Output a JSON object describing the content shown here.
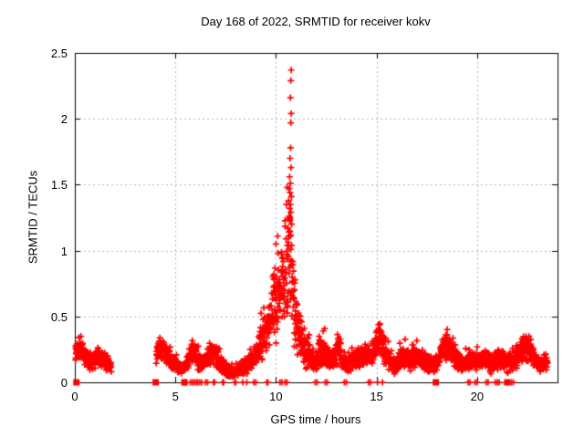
{
  "chart_data": {
    "type": "scatter",
    "title": "Day 168 of 2022, SRMTID for receiver kokv",
    "xlabel": "GPS time / hours",
    "ylabel": "SRMTID / TECUs",
    "xlim": [
      0,
      24
    ],
    "ylim": [
      0,
      2.5
    ],
    "xticks": [
      0,
      5,
      10,
      15,
      20
    ],
    "yticks": [
      0,
      0.5,
      1,
      1.5,
      2,
      2.5
    ],
    "grid": {
      "show": true,
      "style": "dashed",
      "at_xticks": [
        5,
        10,
        15,
        20
      ],
      "at_yticks": [
        0.5,
        1,
        1.5,
        2
      ]
    },
    "legend_position": "none",
    "colors": {
      "background": "#ffffff",
      "border": "#000000",
      "grid": "#b4b4b4",
      "text": "#000000",
      "marker": "#ff0000"
    },
    "series": [
      {
        "name": "srmtid-epochs",
        "marker": "plus",
        "color": "#ff0000",
        "points_per_hour": 120,
        "band_anchors_x_ylow_yhigh": [
          [
            [
              0.03,
              0.14,
              0.3
            ],
            [
              0.15,
              0.18,
              0.37
            ],
            [
              0.3,
              0.17,
              0.34
            ],
            [
              0.5,
              0.12,
              0.28
            ],
            [
              0.7,
              0.09,
              0.24
            ],
            [
              0.9,
              0.09,
              0.24
            ],
            [
              1.1,
              0.12,
              0.3
            ],
            [
              1.3,
              0.11,
              0.27
            ],
            [
              1.5,
              0.08,
              0.23
            ],
            [
              1.7,
              0.07,
              0.21
            ],
            [
              1.82,
              0.06,
              0.18
            ]
          ],
          [
            [
              4.05,
              0.12,
              0.3
            ],
            [
              4.2,
              0.16,
              0.36
            ],
            [
              4.4,
              0.14,
              0.33
            ],
            [
              4.6,
              0.12,
              0.29
            ],
            [
              4.8,
              0.09,
              0.24
            ],
            [
              5.0,
              0.06,
              0.19
            ],
            [
              5.2,
              0.04,
              0.15
            ],
            [
              5.4,
              0.05,
              0.17
            ],
            [
              5.6,
              0.09,
              0.24
            ],
            [
              5.8,
              0.13,
              0.32
            ],
            [
              5.95,
              0.14,
              0.37
            ],
            [
              6.1,
              0.09,
              0.25
            ],
            [
              6.3,
              0.07,
              0.2
            ],
            [
              6.5,
              0.09,
              0.24
            ],
            [
              6.7,
              0.12,
              0.28
            ],
            [
              6.9,
              0.13,
              0.34
            ],
            [
              7.1,
              0.09,
              0.25
            ],
            [
              7.3,
              0.06,
              0.2
            ],
            [
              7.5,
              0.04,
              0.16
            ],
            [
              7.7,
              0.03,
              0.13
            ],
            [
              7.9,
              0.03,
              0.13
            ],
            [
              8.1,
              0.03,
              0.15
            ],
            [
              8.3,
              0.05,
              0.18
            ],
            [
              8.5,
              0.05,
              0.2
            ],
            [
              8.7,
              0.08,
              0.23
            ],
            [
              8.9,
              0.12,
              0.28
            ],
            [
              9.1,
              0.12,
              0.35
            ],
            [
              9.3,
              0.15,
              0.5
            ],
            [
              9.5,
              0.18,
              0.6
            ],
            [
              9.7,
              0.22,
              0.72
            ],
            [
              9.9,
              0.25,
              0.92
            ],
            [
              10.05,
              0.3,
              1.0
            ],
            [
              10.2,
              0.35,
              1.1
            ],
            [
              10.4,
              0.4,
              1.25
            ],
            [
              10.6,
              0.45,
              1.45
            ],
            [
              10.75,
              0.4,
              1.4
            ],
            [
              10.9,
              0.25,
              0.95
            ],
            [
              11.05,
              0.15,
              0.65
            ],
            [
              11.2,
              0.12,
              0.52
            ],
            [
              11.4,
              0.1,
              0.43
            ],
            [
              11.6,
              0.1,
              0.35
            ],
            [
              11.8,
              0.08,
              0.28
            ],
            [
              12.0,
              0.06,
              0.24
            ],
            [
              12.2,
              0.1,
              0.4
            ],
            [
              12.33,
              0.13,
              0.47
            ],
            [
              12.5,
              0.09,
              0.28
            ],
            [
              12.7,
              0.09,
              0.25
            ],
            [
              12.9,
              0.1,
              0.27
            ],
            [
              13.1,
              0.13,
              0.45
            ],
            [
              13.3,
              0.08,
              0.26
            ],
            [
              13.5,
              0.07,
              0.23
            ],
            [
              13.7,
              0.08,
              0.24
            ],
            [
              13.9,
              0.09,
              0.26
            ],
            [
              14.1,
              0.1,
              0.28
            ],
            [
              14.3,
              0.12,
              0.3
            ],
            [
              14.5,
              0.12,
              0.3
            ],
            [
              14.7,
              0.1,
              0.28
            ],
            [
              14.9,
              0.13,
              0.36
            ],
            [
              15.1,
              0.18,
              0.52
            ],
            [
              15.3,
              0.14,
              0.4
            ],
            [
              15.5,
              0.1,
              0.3
            ],
            [
              15.7,
              0.08,
              0.23
            ],
            [
              15.9,
              0.05,
              0.18
            ],
            [
              16.1,
              0.08,
              0.25
            ],
            [
              16.3,
              0.11,
              0.3
            ],
            [
              16.5,
              0.1,
              0.28
            ],
            [
              16.7,
              0.08,
              0.24
            ],
            [
              16.9,
              0.1,
              0.27
            ],
            [
              17.1,
              0.11,
              0.29
            ],
            [
              17.3,
              0.1,
              0.27
            ],
            [
              17.5,
              0.07,
              0.23
            ],
            [
              17.7,
              0.07,
              0.21
            ],
            [
              17.9,
              0.06,
              0.19
            ],
            [
              18.1,
              0.1,
              0.28
            ],
            [
              18.3,
              0.14,
              0.38
            ],
            [
              18.5,
              0.15,
              0.42
            ],
            [
              18.7,
              0.13,
              0.34
            ],
            [
              18.9,
              0.1,
              0.27
            ],
            [
              19.1,
              0.07,
              0.24
            ],
            [
              19.3,
              0.06,
              0.21
            ],
            [
              19.5,
              0.07,
              0.24
            ],
            [
              19.7,
              0.1,
              0.27
            ],
            [
              19.9,
              0.08,
              0.24
            ],
            [
              20.1,
              0.08,
              0.25
            ],
            [
              20.3,
              0.1,
              0.27
            ],
            [
              20.5,
              0.08,
              0.24
            ],
            [
              20.7,
              0.06,
              0.21
            ],
            [
              20.9,
              0.08,
              0.24
            ],
            [
              21.1,
              0.09,
              0.26
            ],
            [
              21.3,
              0.08,
              0.24
            ],
            [
              21.5,
              0.06,
              0.21
            ],
            [
              21.7,
              0.08,
              0.24
            ],
            [
              21.9,
              0.1,
              0.28
            ],
            [
              22.1,
              0.11,
              0.3
            ],
            [
              22.3,
              0.13,
              0.34
            ],
            [
              22.5,
              0.16,
              0.4
            ],
            [
              22.7,
              0.11,
              0.3
            ],
            [
              22.9,
              0.08,
              0.25
            ],
            [
              23.1,
              0.07,
              0.22
            ],
            [
              23.3,
              0.09,
              0.24
            ],
            [
              23.5,
              0.07,
              0.2
            ]
          ]
        ],
        "peak_points": [
          [
            10.76,
            2.37
          ],
          [
            10.74,
            2.29
          ],
          [
            10.72,
            2.16
          ],
          [
            10.76,
            2.04
          ],
          [
            10.74,
            1.97
          ],
          [
            10.73,
            1.78
          ],
          [
            10.7,
            1.7
          ],
          [
            10.75,
            1.63
          ],
          [
            10.68,
            1.56
          ],
          [
            10.72,
            1.51
          ],
          [
            10.66,
            1.47
          ],
          [
            10.7,
            1.44
          ],
          [
            10.77,
            1.41
          ],
          [
            10.63,
            1.38
          ],
          [
            10.72,
            1.35
          ],
          [
            10.68,
            1.32
          ],
          [
            10.74,
            1.29
          ],
          [
            10.65,
            1.26
          ],
          [
            10.7,
            1.23
          ],
          [
            10.78,
            1.2
          ],
          [
            10.6,
            1.17
          ],
          [
            10.67,
            1.14
          ],
          [
            10.73,
            1.11
          ],
          [
            10.56,
            1.48
          ],
          [
            10.52,
            1.35
          ],
          [
            10.0,
            1.05
          ],
          [
            10.1,
            0.98
          ]
        ],
        "zero_value_x": [
          5.45,
          5.5,
          5.75,
          5.85,
          5.95,
          6.05,
          6.1,
          6.2,
          6.3,
          6.5,
          6.6,
          6.9,
          6.95,
          7.35,
          7.4,
          7.95,
          8.0,
          8.35,
          8.55,
          8.9,
          9.0,
          9.55,
          9.6,
          10.2,
          10.3,
          10.45,
          10.55,
          11.95,
          12.05,
          12.45,
          12.55,
          13.4,
          13.5,
          14.6,
          14.7,
          15.05,
          15.3,
          19.55,
          19.65,
          19.9,
          20.0,
          20.45,
          20.55,
          20.9,
          21.0,
          21.1,
          21.7,
          21.8
        ]
      },
      {
        "name": "zero-flag-squares",
        "marker": "filled-square",
        "color": "#ff0000",
        "points": [
          [
            0.08,
            0
          ],
          [
            4.02,
            0
          ],
          [
            5.45,
            0
          ],
          [
            17.95,
            0
          ],
          [
            21.5,
            0
          ]
        ]
      }
    ]
  }
}
